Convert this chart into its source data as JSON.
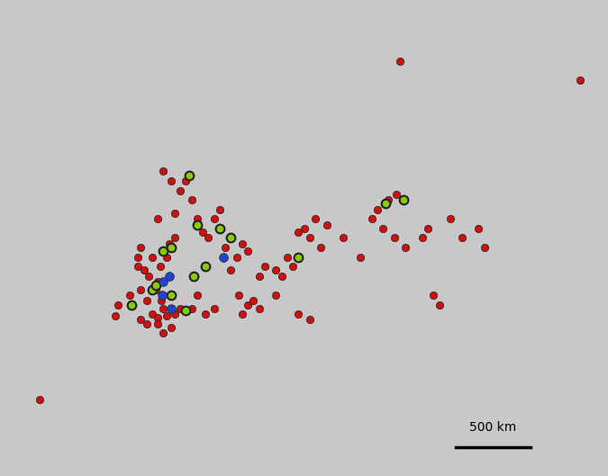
{
  "map_extent_lon": [
    -12,
    42
  ],
  "map_extent_lat": [
    35,
    60
  ],
  "background_color": "#c8c8c8",
  "land_color": "#e8e8e8",
  "ocean_color": "#c8c8c8",
  "border_color": "#888888",
  "border_linewidth": 0.7,
  "scalebar_text": "500 km",
  "red_points": [
    [
      -8.5,
      39.0
    ],
    [
      -1.8,
      43.4
    ],
    [
      -0.5,
      44.5
    ],
    [
      -1.5,
      44.0
    ],
    [
      0.2,
      46.0
    ],
    [
      0.5,
      44.8
    ],
    [
      1.0,
      44.2
    ],
    [
      1.5,
      43.5
    ],
    [
      2.0,
      43.3
    ],
    [
      2.5,
      43.8
    ],
    [
      2.8,
      43.4
    ],
    [
      2.3,
      44.2
    ],
    [
      1.8,
      44.8
    ],
    [
      2.0,
      45.2
    ],
    [
      1.2,
      45.5
    ],
    [
      0.8,
      45.8
    ],
    [
      0.2,
      46.5
    ],
    [
      0.5,
      47.0
    ],
    [
      1.5,
      46.5
    ],
    [
      2.2,
      46.0
    ],
    [
      2.8,
      46.5
    ],
    [
      3.5,
      47.5
    ],
    [
      3.0,
      47.2
    ],
    [
      2.0,
      48.5
    ],
    [
      3.5,
      48.8
    ],
    [
      4.5,
      50.5
    ],
    [
      4.0,
      50.0
    ],
    [
      5.0,
      49.5
    ],
    [
      5.5,
      48.5
    ],
    [
      6.0,
      47.8
    ],
    [
      6.5,
      47.5
    ],
    [
      7.0,
      48.5
    ],
    [
      7.5,
      49.0
    ],
    [
      5.0,
      43.8
    ],
    [
      6.2,
      43.5
    ],
    [
      7.0,
      43.8
    ],
    [
      5.5,
      44.5
    ],
    [
      8.5,
      45.8
    ],
    [
      9.0,
      46.5
    ],
    [
      10.0,
      46.8
    ],
    [
      11.5,
      46.0
    ],
    [
      11.0,
      45.5
    ],
    [
      12.5,
      45.8
    ],
    [
      13.5,
      46.5
    ],
    [
      14.0,
      46.0
    ],
    [
      15.5,
      47.5
    ],
    [
      16.0,
      48.5
    ],
    [
      17.0,
      48.2
    ],
    [
      16.5,
      47.0
    ],
    [
      18.5,
      47.5
    ],
    [
      20.0,
      46.5
    ],
    [
      21.0,
      48.5
    ],
    [
      21.5,
      49.0
    ],
    [
      22.0,
      48.0
    ],
    [
      23.0,
      47.5
    ],
    [
      24.0,
      47.0
    ],
    [
      25.5,
      47.5
    ],
    [
      26.0,
      48.0
    ],
    [
      28.0,
      48.5
    ],
    [
      29.0,
      47.5
    ],
    [
      30.5,
      48.0
    ],
    [
      31.0,
      47.0
    ],
    [
      39.5,
      55.8
    ],
    [
      23.5,
      56.8
    ],
    [
      9.5,
      43.5
    ],
    [
      10.0,
      44.0
    ],
    [
      11.0,
      43.8
    ],
    [
      12.5,
      44.5
    ],
    [
      13.0,
      45.5
    ],
    [
      3.2,
      50.5
    ],
    [
      2.5,
      51.0
    ],
    [
      14.5,
      47.8
    ],
    [
      15.0,
      48.0
    ],
    [
      26.5,
      44.5
    ],
    [
      27.0,
      44.0
    ],
    [
      14.5,
      43.5
    ],
    [
      15.5,
      43.2
    ],
    [
      2.0,
      43.0
    ],
    [
      1.0,
      43.0
    ],
    [
      0.5,
      43.2
    ],
    [
      3.5,
      43.5
    ],
    [
      4.0,
      43.8
    ],
    [
      2.5,
      42.5
    ],
    [
      3.2,
      42.8
    ],
    [
      8.0,
      47.0
    ],
    [
      9.5,
      47.2
    ],
    [
      9.2,
      44.5
    ],
    [
      10.5,
      44.2
    ],
    [
      22.5,
      49.5
    ],
    [
      23.2,
      49.8
    ]
  ],
  "green_points": [
    [
      4.8,
      50.8
    ],
    [
      3.2,
      47.0
    ],
    [
      2.5,
      46.8
    ],
    [
      5.5,
      48.2
    ],
    [
      1.5,
      44.8
    ],
    [
      1.8,
      45.0
    ],
    [
      3.2,
      44.5
    ],
    [
      5.2,
      45.5
    ],
    [
      8.5,
      47.5
    ],
    [
      23.8,
      49.5
    ],
    [
      22.2,
      49.3
    ],
    [
      -0.3,
      44.0
    ],
    [
      4.5,
      43.7
    ],
    [
      7.5,
      48.0
    ],
    [
      6.2,
      46.0
    ],
    [
      14.5,
      46.5
    ]
  ],
  "blue_points": [
    [
      3.0,
      45.5
    ],
    [
      2.5,
      45.2
    ],
    [
      2.4,
      44.5
    ],
    [
      3.2,
      43.8
    ],
    [
      7.8,
      46.5
    ]
  ],
  "red_color": "#cc1111",
  "green_color": "#88cc00",
  "blue_color": "#2244cc",
  "marker_size": 6,
  "green_edge_color": "#222222",
  "green_edge_width": 1.5,
  "blue_edge_color": "#222222",
  "blue_edge_width": 0.5,
  "red_edge_color": "#222222",
  "red_edge_width": 0.5
}
